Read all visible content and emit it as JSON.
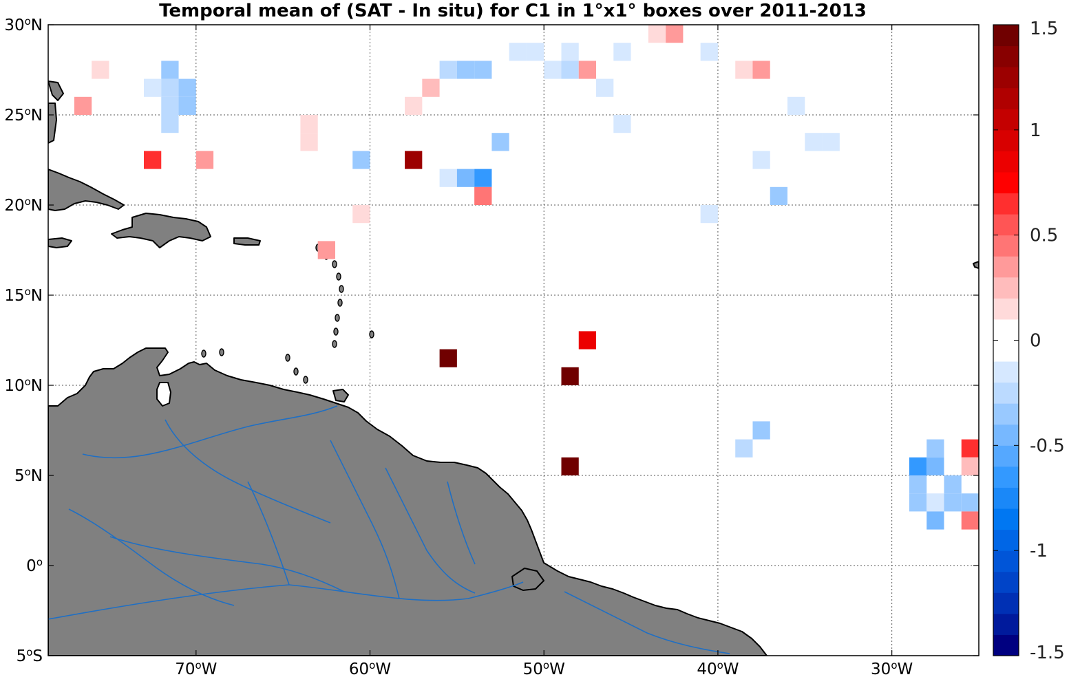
{
  "chart_data": {
    "type": "heatmap",
    "title": "Temporal mean of (SAT - In situ) for C1 in 1°x1° boxes over 2011-2013",
    "xlim": [
      -78.5,
      -25.0
    ],
    "ylim": [
      -5,
      30
    ],
    "x_ticks": [
      {
        "value": -70,
        "deg": "70",
        "hemi": "W"
      },
      {
        "value": -60,
        "deg": "60",
        "hemi": "W"
      },
      {
        "value": -50,
        "deg": "50",
        "hemi": "W"
      },
      {
        "value": -40,
        "deg": "40",
        "hemi": "W"
      },
      {
        "value": -30,
        "deg": "30",
        "hemi": "W"
      }
    ],
    "y_ticks": [
      {
        "value": 30,
        "deg": "30",
        "hemi": "N"
      },
      {
        "value": 25,
        "deg": "25",
        "hemi": "N"
      },
      {
        "value": 20,
        "deg": "20",
        "hemi": "N"
      },
      {
        "value": 15,
        "deg": "15",
        "hemi": "N"
      },
      {
        "value": 10,
        "deg": "10",
        "hemi": "N"
      },
      {
        "value": 5,
        "deg": "5",
        "hemi": "N"
      },
      {
        "value": 0,
        "deg": "0",
        "hemi": ""
      },
      {
        "value": -5,
        "deg": "5",
        "hemi": "S"
      }
    ],
    "grid": true,
    "colorbar": {
      "clim": [
        -1.5,
        1.5
      ],
      "ticks": [
        {
          "value": 1.5,
          "label": "1.5"
        },
        {
          "value": 1,
          "label": "1"
        },
        {
          "value": 0.5,
          "label": "0.5"
        },
        {
          "value": 0,
          "label": "0"
        },
        {
          "value": -0.5,
          "label": "-0.5"
        },
        {
          "value": -1,
          "label": "-1"
        },
        {
          "value": -1.5,
          "label": "-1.5"
        }
      ],
      "n_levels": 30,
      "location": "right"
    },
    "cells": [
      {
        "lon": -43.5,
        "lat": 29.5,
        "value": 0.15
      },
      {
        "lon": -42.5,
        "lat": 29.5,
        "value": 0.35
      },
      {
        "lon": -51.5,
        "lat": 28.5,
        "value": -0.1
      },
      {
        "lon": -50.5,
        "lat": 28.5,
        "value": -0.1
      },
      {
        "lon": -48.5,
        "lat": 28.5,
        "value": -0.1
      },
      {
        "lon": -45.5,
        "lat": 28.5,
        "value": -0.15
      },
      {
        "lon": -40.5,
        "lat": 28.5,
        "value": -0.15
      },
      {
        "lon": -75.5,
        "lat": 27.5,
        "value": 0.15
      },
      {
        "lon": -71.5,
        "lat": 27.5,
        "value": -0.35
      },
      {
        "lon": -55.5,
        "lat": 27.5,
        "value": -0.25
      },
      {
        "lon": -54.5,
        "lat": 27.5,
        "value": -0.35
      },
      {
        "lon": -53.5,
        "lat": 27.5,
        "value": -0.35
      },
      {
        "lon": -49.5,
        "lat": 27.5,
        "value": -0.1
      },
      {
        "lon": -48.5,
        "lat": 27.5,
        "value": -0.25
      },
      {
        "lon": -47.5,
        "lat": 27.5,
        "value": 0.3
      },
      {
        "lon": -38.5,
        "lat": 27.5,
        "value": 0.15
      },
      {
        "lon": -37.5,
        "lat": 27.5,
        "value": 0.3
      },
      {
        "lon": -72.5,
        "lat": 26.5,
        "value": -0.2
      },
      {
        "lon": -71.5,
        "lat": 26.5,
        "value": -0.25
      },
      {
        "lon": -70.5,
        "lat": 26.5,
        "value": -0.35
      },
      {
        "lon": -56.5,
        "lat": 26.5,
        "value": 0.2
      },
      {
        "lon": -46.5,
        "lat": 26.5,
        "value": -0.15
      },
      {
        "lon": -76.5,
        "lat": 25.5,
        "value": 0.35
      },
      {
        "lon": -71.5,
        "lat": 25.5,
        "value": -0.25
      },
      {
        "lon": -70.5,
        "lat": 25.5,
        "value": -0.35
      },
      {
        "lon": -57.5,
        "lat": 25.5,
        "value": 0.15
      },
      {
        "lon": -35.5,
        "lat": 25.5,
        "value": -0.15
      },
      {
        "lon": -71.5,
        "lat": 24.5,
        "value": -0.25
      },
      {
        "lon": -63.5,
        "lat": 24.5,
        "value": 0.15
      },
      {
        "lon": -45.5,
        "lat": 24.5,
        "value": -0.15
      },
      {
        "lon": -63.5,
        "lat": 23.5,
        "value": 0.15
      },
      {
        "lon": -52.5,
        "lat": 23.5,
        "value": -0.3
      },
      {
        "lon": -34.5,
        "lat": 23.5,
        "value": -0.15
      },
      {
        "lon": -33.5,
        "lat": 23.5,
        "value": -0.15
      },
      {
        "lon": -72.5,
        "lat": 22.5,
        "value": 0.6
      },
      {
        "lon": -69.5,
        "lat": 22.5,
        "value": 0.3
      },
      {
        "lon": -60.5,
        "lat": 22.5,
        "value": -0.4
      },
      {
        "lon": -57.5,
        "lat": 22.5,
        "value": 1.3
      },
      {
        "lon": -37.5,
        "lat": 22.5,
        "value": -0.15
      },
      {
        "lon": -55.5,
        "lat": 21.5,
        "value": -0.15
      },
      {
        "lon": -54.5,
        "lat": 21.5,
        "value": -0.5
      },
      {
        "lon": -53.5,
        "lat": 21.5,
        "value": -0.7
      },
      {
        "lon": -53.5,
        "lat": 20.5,
        "value": 0.45
      },
      {
        "lon": -36.5,
        "lat": 20.5,
        "value": -0.35
      },
      {
        "lon": -60.5,
        "lat": 19.5,
        "value": 0.15
      },
      {
        "lon": -40.5,
        "lat": 19.5,
        "value": -0.2
      },
      {
        "lon": -62.5,
        "lat": 17.5,
        "value": 0.35
      },
      {
        "lon": -47.5,
        "lat": 12.5,
        "value": 0.85
      },
      {
        "lon": -55.5,
        "lat": 11.5,
        "value": 1.5
      },
      {
        "lon": -48.5,
        "lat": 10.5,
        "value": 1.5
      },
      {
        "lon": -37.5,
        "lat": 7.5,
        "value": -0.35
      },
      {
        "lon": -38.5,
        "lat": 6.5,
        "value": -0.25
      },
      {
        "lon": -27.5,
        "lat": 6.5,
        "value": -0.4
      },
      {
        "lon": -25.5,
        "lat": 6.5,
        "value": 0.6
      },
      {
        "lon": -48.5,
        "lat": 5.5,
        "value": 1.5
      },
      {
        "lon": -28.5,
        "lat": 5.5,
        "value": -0.65
      },
      {
        "lon": -27.5,
        "lat": 5.5,
        "value": -0.45
      },
      {
        "lon": -25.5,
        "lat": 5.5,
        "value": 0.2
      },
      {
        "lon": -28.5,
        "lat": 4.5,
        "value": -0.35
      },
      {
        "lon": -26.5,
        "lat": 4.5,
        "value": -0.35
      },
      {
        "lon": -28.5,
        "lat": 3.5,
        "value": -0.35
      },
      {
        "lon": -27.5,
        "lat": 3.5,
        "value": -0.1
      },
      {
        "lon": -26.5,
        "lat": 3.5,
        "value": -0.3
      },
      {
        "lon": -25.5,
        "lat": 3.5,
        "value": -0.3
      },
      {
        "lon": -27.5,
        "lat": 2.5,
        "value": -0.45
      },
      {
        "lon": -25.5,
        "lat": 2.5,
        "value": 0.4
      }
    ]
  },
  "colors": {
    "land": "#808080",
    "coast": "#000000",
    "river": "#1f6fc4",
    "grid": "#555555"
  }
}
